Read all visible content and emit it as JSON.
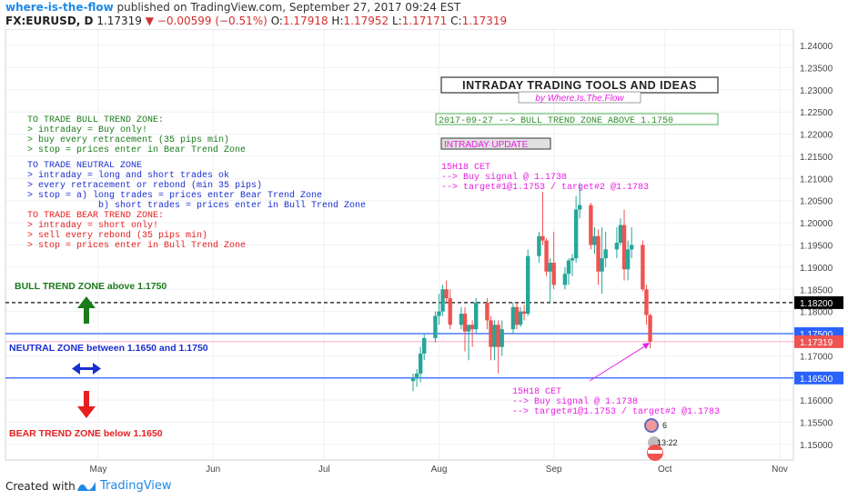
{
  "header": {
    "author": "where-is-the-flow",
    "published": "published on TradingView.com, September 27, 2017 09:24 EST",
    "symbol": "FX:EURUSD, D",
    "last": "1.17319",
    "change_arrow": "▼",
    "change": "−0.00599 (−0.51%)",
    "o_label": "O:",
    "o": "1.17918",
    "h_label": "H:",
    "h": "1.17952",
    "l_label": "L:",
    "l": "1.17171",
    "c_label": "C:",
    "c": "1.17319"
  },
  "footer": {
    "created": "Created with",
    "brand": "TradingView"
  },
  "colors": {
    "up": "#26a69a",
    "down": "#ef5350",
    "zone_line": "#2962ff",
    "bull": "#1b7a1b",
    "neutral": "#1a2fcf",
    "bear": "#e61e1e",
    "magenta": "#e91ee0"
  },
  "chart_data": {
    "type": "candlestick",
    "x_ticks": [
      "May",
      "Jun",
      "Jul",
      "Aug",
      "Sep",
      "Oct",
      "Nov"
    ],
    "y_ticks": [
      "1.15000",
      "1.15500",
      "1.16000",
      "1.16500",
      "1.17000",
      "1.17500",
      "1.18000",
      "1.18500",
      "1.19000",
      "1.19500",
      "1.20000",
      "1.20500",
      "1.21000",
      "1.21500",
      "1.22000",
      "1.22500",
      "1.23000",
      "1.23500",
      "1.24000"
    ],
    "ylim": [
      1.1465,
      1.2437
    ],
    "price_labels": [
      {
        "value": 1.182,
        "text": "1.18200",
        "style": "dark"
      },
      {
        "value": 1.175,
        "text": "1.17500",
        "style": "blue"
      },
      {
        "value": 1.17319,
        "text": "1.17319",
        "style": "red"
      },
      {
        "value": 1.165,
        "text": "1.16500",
        "style": "blue"
      }
    ],
    "lines": [
      {
        "value": 1.182,
        "style": "dashed-black"
      },
      {
        "value": 1.175,
        "style": "solid-blue"
      },
      {
        "value": 1.165,
        "style": "solid-blue"
      },
      {
        "value": 1.17319,
        "style": "last-price"
      }
    ],
    "candles": [
      {
        "date": "2017-07-25",
        "o": 1.1643,
        "h": 1.166,
        "l": 1.162,
        "c": 1.165
      },
      {
        "date": "2017-07-26",
        "o": 1.165,
        "h": 1.167,
        "l": 1.163,
        "c": 1.166
      },
      {
        "date": "2017-07-27",
        "o": 1.166,
        "h": 1.172,
        "l": 1.164,
        "c": 1.1705
      },
      {
        "date": "2017-07-28",
        "o": 1.1705,
        "h": 1.175,
        "l": 1.169,
        "c": 1.174
      },
      {
        "date": "2017-07-31",
        "o": 1.174,
        "h": 1.18,
        "l": 1.173,
        "c": 1.179
      },
      {
        "date": "2017-08-01",
        "o": 1.179,
        "h": 1.184,
        "l": 1.177,
        "c": 1.18
      },
      {
        "date": "2017-08-02",
        "o": 1.18,
        "h": 1.186,
        "l": 1.179,
        "c": 1.185
      },
      {
        "date": "2017-08-03",
        "o": 1.185,
        "h": 1.187,
        "l": 1.182,
        "c": 1.183
      },
      {
        "date": "2017-08-04",
        "o": 1.183,
        "h": 1.185,
        "l": 1.176,
        "c": 1.177
      },
      {
        "date": "2017-08-07",
        "o": 1.177,
        "h": 1.181,
        "l": 1.176,
        "c": 1.1795
      },
      {
        "date": "2017-08-08",
        "o": 1.1795,
        "h": 1.181,
        "l": 1.171,
        "c": 1.1755
      },
      {
        "date": "2017-08-09",
        "o": 1.1755,
        "h": 1.177,
        "l": 1.169,
        "c": 1.177
      },
      {
        "date": "2017-08-10",
        "o": 1.177,
        "h": 1.178,
        "l": 1.172,
        "c": 1.176
      },
      {
        "date": "2017-08-11",
        "o": 1.176,
        "h": 1.183,
        "l": 1.175,
        "c": 1.182
      },
      {
        "date": "2017-08-14",
        "o": 1.182,
        "h": 1.183,
        "l": 1.176,
        "c": 1.178
      },
      {
        "date": "2017-08-15",
        "o": 1.178,
        "h": 1.179,
        "l": 1.169,
        "c": 1.172
      },
      {
        "date": "2017-08-16",
        "o": 1.172,
        "h": 1.178,
        "l": 1.169,
        "c": 1.177
      },
      {
        "date": "2017-08-17",
        "o": 1.177,
        "h": 1.178,
        "l": 1.166,
        "c": 1.172
      },
      {
        "date": "2017-08-18",
        "o": 1.172,
        "h": 1.178,
        "l": 1.17,
        "c": 1.176
      },
      {
        "date": "2017-08-21",
        "o": 1.176,
        "h": 1.182,
        "l": 1.175,
        "c": 1.181
      },
      {
        "date": "2017-08-22",
        "o": 1.181,
        "h": 1.182,
        "l": 1.176,
        "c": 1.177
      },
      {
        "date": "2017-08-23",
        "o": 1.177,
        "h": 1.181,
        "l": 1.1765,
        "c": 1.18
      },
      {
        "date": "2017-08-24",
        "o": 1.18,
        "h": 1.1815,
        "l": 1.178,
        "c": 1.1795
      },
      {
        "date": "2017-08-25",
        "o": 1.1795,
        "h": 1.194,
        "l": 1.179,
        "c": 1.1925
      },
      {
        "date": "2017-08-28",
        "o": 1.1925,
        "h": 1.198,
        "l": 1.191,
        "c": 1.197
      },
      {
        "date": "2017-08-29",
        "o": 1.197,
        "h": 1.207,
        "l": 1.195,
        "c": 1.196
      },
      {
        "date": "2017-08-30",
        "o": 1.196,
        "h": 1.1965,
        "l": 1.188,
        "c": 1.189
      },
      {
        "date": "2017-08-31",
        "o": 1.189,
        "h": 1.192,
        "l": 1.182,
        "c": 1.191
      },
      {
        "date": "2017-09-01",
        "o": 1.191,
        "h": 1.198,
        "l": 1.185,
        "c": 1.186
      },
      {
        "date": "2017-09-04",
        "o": 1.186,
        "h": 1.19,
        "l": 1.185,
        "c": 1.1885
      },
      {
        "date": "2017-09-05",
        "o": 1.1885,
        "h": 1.192,
        "l": 1.186,
        "c": 1.1915
      },
      {
        "date": "2017-09-06",
        "o": 1.1915,
        "h": 1.193,
        "l": 1.188,
        "c": 1.192
      },
      {
        "date": "2017-09-07",
        "o": 1.192,
        "h": 1.206,
        "l": 1.191,
        "c": 1.203
      },
      {
        "date": "2017-09-08",
        "o": 1.203,
        "h": 1.209,
        "l": 1.201,
        "c": 1.204
      },
      {
        "date": "2017-09-11",
        "o": 1.204,
        "h": 1.2045,
        "l": 1.194,
        "c": 1.195
      },
      {
        "date": "2017-09-12",
        "o": 1.195,
        "h": 1.199,
        "l": 1.193,
        "c": 1.197
      },
      {
        "date": "2017-09-13",
        "o": 1.197,
        "h": 1.1985,
        "l": 1.186,
        "c": 1.189
      },
      {
        "date": "2017-09-14",
        "o": 1.189,
        "h": 1.199,
        "l": 1.184,
        "c": 1.192
      },
      {
        "date": "2017-09-15",
        "o": 1.192,
        "h": 1.198,
        "l": 1.19,
        "c": 1.194
      },
      {
        "date": "2017-09-18",
        "o": 1.194,
        "h": 1.199,
        "l": 1.192,
        "c": 1.1955
      },
      {
        "date": "2017-09-19",
        "o": 1.1955,
        "h": 1.201,
        "l": 1.195,
        "c": 1.1995
      },
      {
        "date": "2017-09-20",
        "o": 1.1995,
        "h": 1.203,
        "l": 1.187,
        "c": 1.1895
      },
      {
        "date": "2017-09-21",
        "o": 1.1895,
        "h": 1.196,
        "l": 1.187,
        "c": 1.194
      },
      {
        "date": "2017-09-22",
        "o": 1.194,
        "h": 1.199,
        "l": 1.192,
        "c": 1.195
      },
      {
        "date": "2017-09-25",
        "o": 1.195,
        "h": 1.196,
        "l": 1.1845,
        "c": 1.185
      },
      {
        "date": "2017-09-26",
        "o": 1.185,
        "h": 1.186,
        "l": 1.177,
        "c": 1.1792
      },
      {
        "date": "2017-09-27",
        "o": 1.17918,
        "h": 1.17952,
        "l": 1.17171,
        "c": 1.17319
      }
    ],
    "annotations": {
      "title": "INTRADAY TRADING TOOLS AND IDEAS",
      "byline": "by Where.Is.The.Flow",
      "bull_zone_box": "2017-09-27 --> BULL TREND ZONE ABOVE 1.1750",
      "intraday_update": "INTRADAY UPDATE",
      "signal_top": [
        "15H18 CET",
        "--> Buy signal @ 1.1738",
        "--> target#1@1.1753 / target#2 @1.1783"
      ],
      "signal_bottom": [
        "15H18 CET",
        "--> Buy signal @ 1.1738",
        "--> target#1@1.1753 / target#2 @1.1783"
      ],
      "bull_block": [
        "TO TRADE BULL TREND ZONE:",
        "> intraday = Buy only!",
        "> buy every retracement (35 pips min)",
        "> stop = prices enter in Bear Trend Zone"
      ],
      "neutral_block": [
        "TO TRADE NEUTRAL ZONE",
        "> intraday = long and short trades ok",
        "> every retracement or rebond (min 35 pips)",
        "> stop = a) long trades = prices enter Bear Trend Zone",
        "b) short trades = prices enter in Bull Trend Zone"
      ],
      "bear_block": [
        "TO TRADE BEAR TREND ZONE:",
        "> intraday = short only!",
        "> sell every rebond (35 pips min)",
        "> stop = prices enter in Bull Trend Zone"
      ],
      "bull_zone_label": "BULL TREND ZONE above 1.1750",
      "neutral_zone_label": "NEUTRAL ZONE between 1.1650 and 1.1750",
      "bear_zone_label": "BEAR TREND ZONE below 1.1650",
      "badge_number": "6",
      "badge_time": "13:22"
    }
  }
}
